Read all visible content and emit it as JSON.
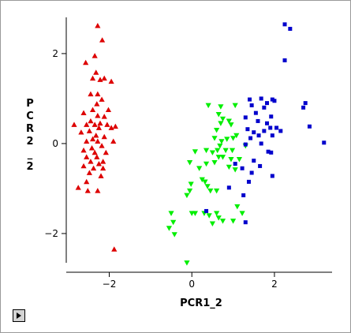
{
  "chart_data": {
    "type": "scatter",
    "title": "",
    "xlabel": "PCR1_2",
    "ylabel": "PCR2_2",
    "xlim": [
      -2.85,
      3.3
    ],
    "ylim": [
      -2.65,
      2.7
    ],
    "xticks": [
      -2,
      0,
      2
    ],
    "yticks": [
      -2,
      0,
      2
    ],
    "grid": false,
    "legend": "none",
    "series": [
      {
        "marker": "triangle-up",
        "color": "#dd0000",
        "points": [
          [
            -2.28,
            2.62
          ],
          [
            -2.17,
            2.3
          ],
          [
            -2.35,
            1.95
          ],
          [
            -2.57,
            1.8
          ],
          [
            -2.32,
            1.58
          ],
          [
            -2.12,
            1.45
          ],
          [
            -2.4,
            1.45
          ],
          [
            -1.95,
            1.38
          ],
          [
            -2.22,
            1.42
          ],
          [
            -2.45,
            1.1
          ],
          [
            -2.28,
            1.1
          ],
          [
            -2.18,
            0.98
          ],
          [
            -2.3,
            0.88
          ],
          [
            -2.4,
            0.75
          ],
          [
            -2.02,
            0.75
          ],
          [
            -2.62,
            0.68
          ],
          [
            -2.28,
            0.62
          ],
          [
            -2.12,
            0.6
          ],
          [
            -2.45,
            0.5
          ],
          [
            -2.35,
            0.42
          ],
          [
            -2.22,
            0.45
          ],
          [
            -2.05,
            0.42
          ],
          [
            -2.85,
            0.42
          ],
          [
            -2.55,
            0.42
          ],
          [
            -2.25,
            0.35
          ],
          [
            -1.85,
            0.38
          ],
          [
            -1.95,
            0.35
          ],
          [
            -2.68,
            0.25
          ],
          [
            -2.48,
            0.28
          ],
          [
            -2.32,
            0.18
          ],
          [
            -2.12,
            0.15
          ],
          [
            -2.4,
            0.1
          ],
          [
            -2.28,
            0.05
          ],
          [
            -1.9,
            0.05
          ],
          [
            -2.55,
            0.05
          ],
          [
            -2.18,
            -0.05
          ],
          [
            -2.42,
            -0.1
          ],
          [
            -2.62,
            -0.15
          ],
          [
            -2.35,
            -0.2
          ],
          [
            -2.08,
            -0.2
          ],
          [
            -2.3,
            -0.3
          ],
          [
            -2.55,
            -0.3
          ],
          [
            -2.15,
            -0.4
          ],
          [
            -2.45,
            -0.4
          ],
          [
            -2.25,
            -0.45
          ],
          [
            -2.62,
            -0.5
          ],
          [
            -2.38,
            -0.55
          ],
          [
            -2.15,
            -0.55
          ],
          [
            -2.48,
            -0.65
          ],
          [
            -2.2,
            -0.72
          ],
          [
            -2.55,
            -0.85
          ],
          [
            -2.75,
            -0.98
          ],
          [
            -2.52,
            -1.05
          ],
          [
            -2.28,
            -1.05
          ],
          [
            -1.88,
            -2.35
          ]
        ]
      },
      {
        "marker": "triangle-down",
        "color": "#00ee00",
        "points": [
          [
            0.4,
            0.85
          ],
          [
            0.7,
            0.82
          ],
          [
            1.05,
            0.85
          ],
          [
            0.65,
            0.65
          ],
          [
            0.75,
            0.55
          ],
          [
            0.9,
            0.5
          ],
          [
            0.7,
            0.45
          ],
          [
            0.95,
            0.42
          ],
          [
            0.6,
            0.3
          ],
          [
            1.08,
            0.18
          ],
          [
            0.55,
            0.12
          ],
          [
            1.0,
            0.12
          ],
          [
            0.85,
            0.1
          ],
          [
            0.72,
            0.05
          ],
          [
            0.68,
            -0.05
          ],
          [
            1.3,
            -0.05
          ],
          [
            0.62,
            -0.15
          ],
          [
            0.82,
            -0.15
          ],
          [
            0.98,
            -0.15
          ],
          [
            0.08,
            -0.18
          ],
          [
            0.35,
            -0.15
          ],
          [
            0.5,
            -0.2
          ],
          [
            0.65,
            -0.3
          ],
          [
            0.75,
            -0.3
          ],
          [
            0.95,
            -0.35
          ],
          [
            1.15,
            -0.35
          ],
          [
            -0.05,
            -0.42
          ],
          [
            0.55,
            -0.42
          ],
          [
            0.35,
            -0.45
          ],
          [
            0.18,
            -0.55
          ],
          [
            0.9,
            -0.52
          ],
          [
            1.05,
            -0.58
          ],
          [
            0.25,
            -0.8
          ],
          [
            0.32,
            -0.85
          ],
          [
            -0.02,
            -0.9
          ],
          [
            0.38,
            -0.95
          ],
          [
            -0.05,
            -1.05
          ],
          [
            0.45,
            -1.05
          ],
          [
            0.6,
            -1.05
          ],
          [
            -0.12,
            -1.15
          ],
          [
            1.1,
            -1.4
          ],
          [
            0.0,
            -1.55
          ],
          [
            0.08,
            -1.55
          ],
          [
            0.3,
            -1.55
          ],
          [
            0.6,
            -1.55
          ],
          [
            1.22,
            -1.55
          ],
          [
            0.42,
            -1.6
          ],
          [
            0.65,
            -1.65
          ],
          [
            0.75,
            -1.72
          ],
          [
            1.0,
            -1.72
          ],
          [
            0.5,
            -1.78
          ],
          [
            -0.5,
            -1.55
          ],
          [
            -0.45,
            -1.75
          ],
          [
            -0.55,
            -1.88
          ],
          [
            -0.42,
            -2.02
          ],
          [
            -0.12,
            -2.65
          ]
        ]
      },
      {
        "marker": "square",
        "color": "#0000cc",
        "points": [
          [
            2.25,
            2.65
          ],
          [
            2.38,
            2.55
          ],
          [
            2.25,
            1.85
          ],
          [
            1.4,
            0.98
          ],
          [
            1.68,
            1.0
          ],
          [
            1.95,
            0.98
          ],
          [
            1.82,
            0.9
          ],
          [
            2.0,
            0.95
          ],
          [
            1.45,
            0.85
          ],
          [
            1.75,
            0.8
          ],
          [
            1.55,
            0.68
          ],
          [
            1.92,
            0.6
          ],
          [
            1.3,
            0.58
          ],
          [
            1.6,
            0.5
          ],
          [
            1.82,
            0.45
          ],
          [
            2.7,
            0.8
          ],
          [
            2.75,
            0.9
          ],
          [
            1.9,
            0.35
          ],
          [
            1.35,
            0.32
          ],
          [
            1.75,
            0.28
          ],
          [
            2.05,
            0.35
          ],
          [
            2.15,
            0.28
          ],
          [
            2.85,
            0.38
          ],
          [
            1.5,
            0.25
          ],
          [
            1.62,
            0.18
          ],
          [
            1.95,
            0.18
          ],
          [
            1.42,
            0.12
          ],
          [
            1.3,
            -0.02
          ],
          [
            1.68,
            0.0
          ],
          [
            3.2,
            0.02
          ],
          [
            1.85,
            -0.18
          ],
          [
            1.92,
            -0.2
          ],
          [
            1.5,
            -0.38
          ],
          [
            1.05,
            -0.45
          ],
          [
            1.65,
            -0.5
          ],
          [
            1.22,
            -0.55
          ],
          [
            1.45,
            -0.65
          ],
          [
            1.95,
            -0.72
          ],
          [
            1.38,
            -0.85
          ],
          [
            0.9,
            -0.98
          ],
          [
            1.25,
            -1.15
          ],
          [
            0.35,
            -1.5
          ],
          [
            1.3,
            -1.75
          ]
        ]
      }
    ]
  },
  "ui": {
    "expand_icon": "play-triangle-icon"
  }
}
